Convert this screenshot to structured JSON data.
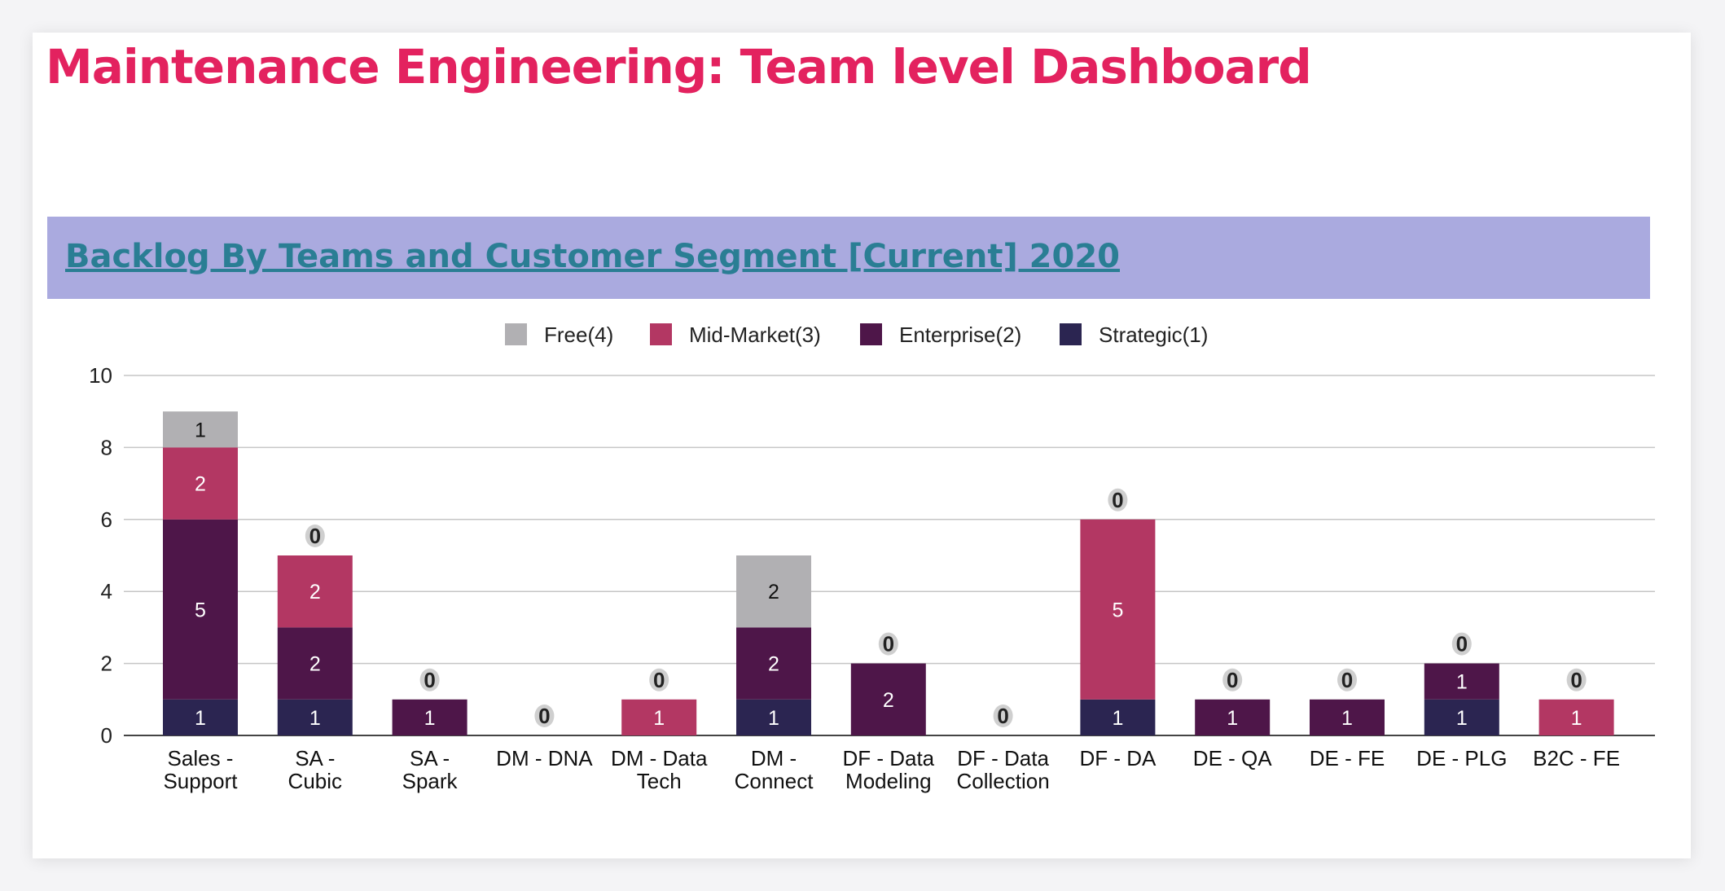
{
  "page": {
    "title": "Maintenance Engineering: Team level Dashboard"
  },
  "banner": {
    "link_text": "Backlog By Teams and Customer Segment [Current] 2020"
  },
  "colors": {
    "title": "#e3225f",
    "banner_bg": "#aaaadf",
    "banner_link": "#2a7e94",
    "free": "#b1b0b3",
    "mid_market": "#b33763",
    "enterprise": "#4e1649",
    "strategic": "#2b2551"
  },
  "chart_data": {
    "type": "bar",
    "stacked": true,
    "title": "",
    "xlabel": "",
    "ylabel": "",
    "ylim": [
      0,
      10
    ],
    "yticks": [
      0,
      2,
      4,
      6,
      8,
      10
    ],
    "grid": true,
    "legend_position": "top-center",
    "categories": [
      [
        "Sales -",
        "Support"
      ],
      [
        "SA -",
        "Cubic"
      ],
      [
        "SA -",
        "Spark"
      ],
      [
        "DM - DNA"
      ],
      [
        "DM - Data",
        "Tech"
      ],
      [
        "DM -",
        "Connect"
      ],
      [
        "DF - Data",
        "Modeling"
      ],
      [
        "DF - Data",
        "Collection"
      ],
      [
        "DF - DA"
      ],
      [
        "DE - QA"
      ],
      [
        "DE - FE"
      ],
      [
        "DE - PLG"
      ],
      [
        "B2C - FE"
      ]
    ],
    "series": [
      {
        "name": "Strategic(1)",
        "color": "#2b2551",
        "values": [
          1,
          1,
          0,
          0,
          0,
          1,
          0,
          0,
          1,
          0,
          0,
          1,
          0
        ]
      },
      {
        "name": "Enterprise(2)",
        "color": "#4e1649",
        "values": [
          5,
          2,
          1,
          0,
          0,
          2,
          2,
          0,
          0,
          1,
          1,
          1,
          0
        ]
      },
      {
        "name": "Mid-Market(3)",
        "color": "#b33763",
        "values": [
          2,
          2,
          0,
          0,
          1,
          0,
          0,
          0,
          5,
          0,
          0,
          0,
          1
        ]
      },
      {
        "name": "Free(4)",
        "color": "#b1b0b3",
        "values": [
          1,
          0,
          0,
          0,
          0,
          2,
          0,
          0,
          0,
          0,
          0,
          0,
          0
        ]
      }
    ],
    "legend_order": [
      "Free(4)",
      "Mid-Market(3)",
      "Enterprise(2)",
      "Strategic(1)"
    ],
    "zero_labels": [
      "",
      "0",
      "0",
      "0",
      "0",
      "",
      "0",
      "0",
      "0",
      "0",
      "0",
      "0",
      "0"
    ]
  }
}
